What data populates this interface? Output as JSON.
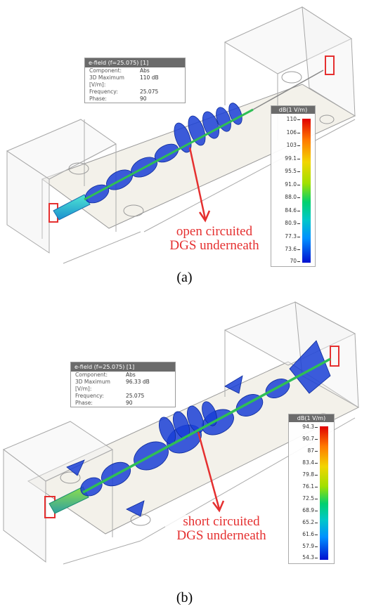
{
  "panels": [
    {
      "info": {
        "title": "e-field (f=25.075) [1]",
        "rows": [
          {
            "key": "Component:",
            "value": "Abs"
          },
          {
            "key": "3D Maximum [V/m]:",
            "value": "110 dB"
          },
          {
            "key": "Frequency:",
            "value": "25.075"
          },
          {
            "key": "Phase:",
            "value": "90"
          }
        ]
      },
      "legend": {
        "title": "dB(1 V/m)",
        "ticks": [
          "110",
          "106",
          "103",
          "99.1",
          "95.5",
          "91.0",
          "88.0",
          "84.6",
          "80.9",
          "77.3",
          "73.6",
          "70"
        ]
      },
      "annotation": {
        "line1": "open circuited",
        "line2": "DGS underneath"
      },
      "caption": "(a)"
    },
    {
      "info": {
        "title": "e-field (f=25.075) [1]",
        "rows": [
          {
            "key": "Component:",
            "value": "Abs"
          },
          {
            "key": "3D Maximum [V/m]:",
            "value": "96.33 dB"
          },
          {
            "key": "Frequency:",
            "value": "25.075"
          },
          {
            "key": "Phase:",
            "value": "90"
          }
        ]
      },
      "legend": {
        "title": "dB(1 V/m)",
        "ticks": [
          "94.3",
          "90.7",
          "87",
          "83.4",
          "79.8",
          "76.1",
          "72.5",
          "68.9",
          "65.2",
          "61.6",
          "57.9",
          "54.3"
        ]
      },
      "annotation": {
        "line1": "short circuited",
        "line2": "DGS underneath"
      },
      "caption": "(b)"
    }
  ],
  "colors": {
    "accent_red": "#e53030",
    "field_blue": "#1a3fd6",
    "trace_green": "#2fbf55"
  }
}
